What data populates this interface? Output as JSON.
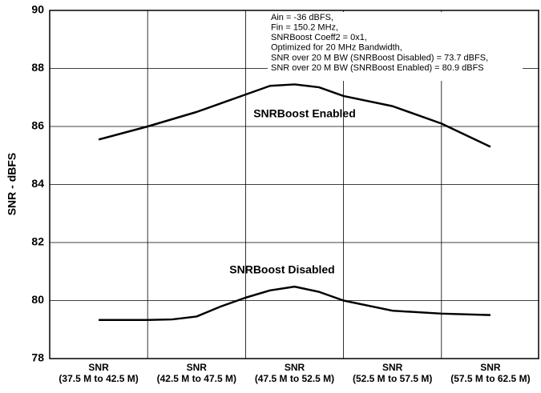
{
  "chart_data": {
    "type": "line",
    "y_label": "SNR - dBFS",
    "xlim": [
      -0.5,
      4.5
    ],
    "xticks": [
      {
        "value": 0,
        "label": "SNR\n(37.5 M to 42.5 M)"
      },
      {
        "value": 1,
        "label": "SNR\n(42.5 M to 47.5 M)"
      },
      {
        "value": 2,
        "label": "SNR\n(47.5 M to 52.5 M)"
      },
      {
        "value": 3,
        "label": "SNR\n(52.5 M to 57.5 M)"
      },
      {
        "value": 4,
        "label": "SNR\n(57.5 M to 62.5 M)"
      }
    ],
    "ylim": [
      78,
      90
    ],
    "yticks": [
      78,
      80,
      82,
      84,
      86,
      88,
      90
    ],
    "grid": true,
    "annotation": [
      "Ain = -36 dBFS,",
      "Fin = 150.2 MHz,",
      "SNRBoost Coeff2 = 0x1,",
      "Optimized for 20 MHz Bandwidth,",
      "SNR over 20 M BW (SNRBoost Disabled) = 73.7 dBFS,",
      "SNR over 20 M BW (SNRBoost Enabled) = 80.9 dBFS"
    ],
    "series": [
      {
        "name": "SNRBoost Enabled",
        "color": "#000000",
        "x": [
          0,
          0.5,
          1,
          1.5,
          1.75,
          2,
          2.25,
          2.5,
          3,
          3.5,
          4
        ],
        "values": [
          85.55,
          86.0,
          86.5,
          87.1,
          87.4,
          87.45,
          87.35,
          87.05,
          86.7,
          86.1,
          85.3
        ]
      },
      {
        "name": "SNRBoost Disabled",
        "color": "#000000",
        "x": [
          0,
          0.5,
          0.75,
          1,
          1.25,
          1.5,
          1.75,
          2,
          2.25,
          2.5,
          3,
          3.5,
          4
        ],
        "values": [
          79.33,
          79.33,
          79.35,
          79.45,
          79.8,
          80.1,
          80.35,
          80.48,
          80.3,
          80.0,
          79.65,
          79.55,
          79.5
        ]
      }
    ]
  }
}
